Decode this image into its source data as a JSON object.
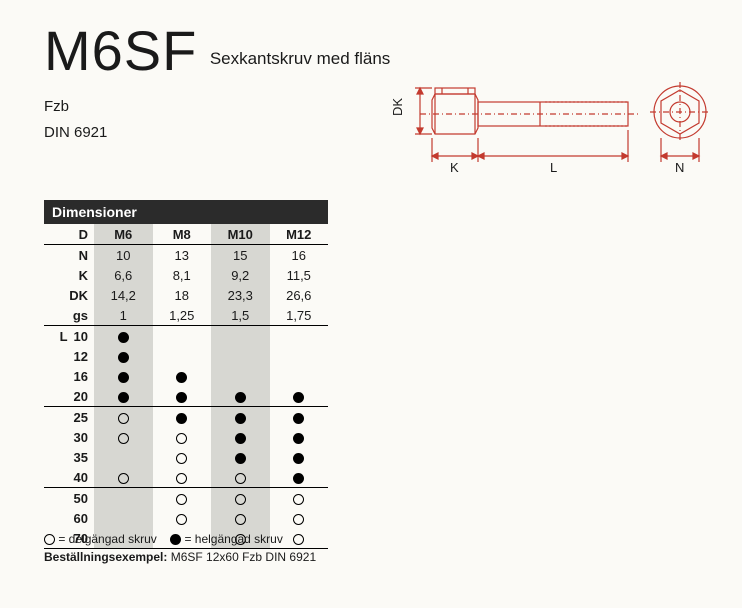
{
  "header": {
    "title": "M6SF",
    "subtitle": "Sexkantskruv med fläns"
  },
  "meta": {
    "line1": "Fzb",
    "line2": "DIN 6921"
  },
  "diagram": {
    "labels": {
      "dk": "DK",
      "k": "K",
      "l": "L",
      "n": "N"
    },
    "stroke": "#c33a2f",
    "stroke_width": 1.2
  },
  "table": {
    "header": "Dimensioner",
    "col_header": "D",
    "columns": [
      "M6",
      "M8",
      "M10",
      "M12"
    ],
    "shaded_cols": [
      0,
      2
    ],
    "spec_rows": [
      {
        "label": "N",
        "values": [
          "10",
          "13",
          "15",
          "16"
        ]
      },
      {
        "label": "K",
        "values": [
          "6,6",
          "8,1",
          "9,2",
          "11,5"
        ]
      },
      {
        "label": "DK",
        "values": [
          "14,2",
          "18",
          "23,3",
          "26,6"
        ]
      },
      {
        "label": "gs",
        "values": [
          "1",
          "1,25",
          "1,5",
          "1,75"
        ]
      }
    ],
    "length_rows": [
      {
        "l": "10",
        "marks": [
          "f",
          "",
          "",
          ""
        ]
      },
      {
        "l": "12",
        "marks": [
          "f",
          "",
          "",
          ""
        ]
      },
      {
        "l": "16",
        "marks": [
          "f",
          "f",
          "",
          ""
        ]
      },
      {
        "l": "20",
        "marks": [
          "f",
          "f",
          "f",
          "f"
        ],
        "sep": true
      },
      {
        "l": "25",
        "marks": [
          "o",
          "f",
          "f",
          "f"
        ]
      },
      {
        "l": "30",
        "marks": [
          "o",
          "o",
          "f",
          "f"
        ]
      },
      {
        "l": "35",
        "marks": [
          "",
          "o",
          "f",
          "f"
        ]
      },
      {
        "l": "40",
        "marks": [
          "o",
          "o",
          "o",
          "f"
        ],
        "sep": true
      },
      {
        "l": "50",
        "marks": [
          "",
          "o",
          "o",
          "o"
        ]
      },
      {
        "l": "60",
        "marks": [
          "",
          "o",
          "o",
          "o"
        ]
      },
      {
        "l": "70",
        "marks": [
          "",
          "",
          "o",
          "o"
        ]
      }
    ]
  },
  "legend": {
    "open": "= delgängad skruv",
    "fill": "= helgängad skruv",
    "order_label": "Beställningsexempel:",
    "order_value": "M6SF 12x60 Fzb DIN 6921"
  }
}
